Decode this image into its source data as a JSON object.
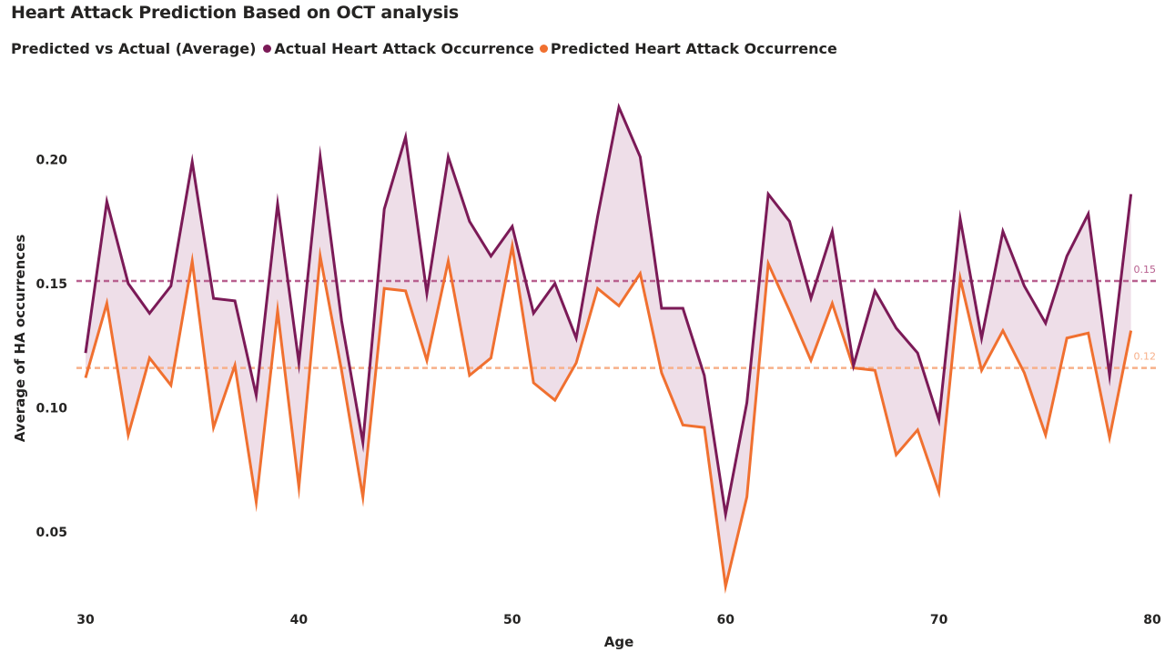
{
  "title": "Heart Attack Prediction Based on OCT analysis",
  "colors": {
    "actual": "#7b1a57",
    "predicted": "#f07030",
    "fill": "#e8d3e0",
    "actual_ref": "#b8608f",
    "predicted_ref": "#f7b08a"
  },
  "chart_data": {
    "type": "line",
    "legend": {
      "title": "Predicted vs Actual (Average)",
      "position": "top-left"
    },
    "xlabel": "Age",
    "ylabel": "Average of HA occurrences",
    "xlim": [
      30,
      80
    ],
    "ylim": [
      0.025,
      0.225
    ],
    "x_ticks": [
      "30",
      "40",
      "50",
      "60",
      "70",
      "80"
    ],
    "y_ticks": [
      "0.05",
      "0.10",
      "0.15",
      "0.20"
    ],
    "grid": false,
    "x": [
      30,
      31,
      32,
      33,
      34,
      35,
      36,
      37,
      38,
      39,
      40,
      41,
      42,
      43,
      44,
      45,
      46,
      47,
      48,
      49,
      50,
      51,
      52,
      53,
      54,
      55,
      56,
      57,
      58,
      59,
      60,
      61,
      62,
      63,
      64,
      65,
      66,
      67,
      68,
      69,
      70,
      71,
      72,
      73,
      74,
      75,
      76,
      77,
      78,
      79
    ],
    "series": [
      {
        "name": "Actual Heart Attack Occurrence",
        "values": [
          0.122,
          0.183,
          0.15,
          0.138,
          0.149,
          0.199,
          0.144,
          0.143,
          0.105,
          0.182,
          0.118,
          0.201,
          0.135,
          0.086,
          0.18,
          0.209,
          0.146,
          0.201,
          0.175,
          0.161,
          0.173,
          0.138,
          0.15,
          0.128,
          0.177,
          0.221,
          0.201,
          0.14,
          0.14,
          0.113,
          0.057,
          0.102,
          0.186,
          0.175,
          0.144,
          0.171,
          0.117,
          0.147,
          0.132,
          0.122,
          0.095,
          0.176,
          0.128,
          0.171,
          0.149,
          0.134,
          0.161,
          0.178,
          0.113,
          0.186
        ]
      },
      {
        "name": "Predicted Heart Attack Occurrence",
        "values": [
          0.112,
          0.142,
          0.089,
          0.12,
          0.109,
          0.159,
          0.092,
          0.117,
          0.062,
          0.139,
          0.068,
          0.161,
          0.115,
          0.064,
          0.148,
          0.147,
          0.119,
          0.159,
          0.113,
          0.12,
          0.165,
          0.11,
          0.103,
          0.118,
          0.148,
          0.141,
          0.154,
          0.114,
          0.093,
          0.092,
          0.028,
          0.064,
          0.158,
          0.139,
          0.119,
          0.142,
          0.116,
          0.115,
          0.081,
          0.091,
          0.066,
          0.152,
          0.115,
          0.131,
          0.114,
          0.089,
          0.128,
          0.13,
          0.088,
          0.131
        ]
      }
    ],
    "reference_lines": [
      {
        "series": "Actual Heart Attack Occurrence",
        "value": 0.151,
        "label": "0.15"
      },
      {
        "series": "Predicted Heart Attack Occurrence",
        "value": 0.116,
        "label": "0.12"
      }
    ]
  }
}
